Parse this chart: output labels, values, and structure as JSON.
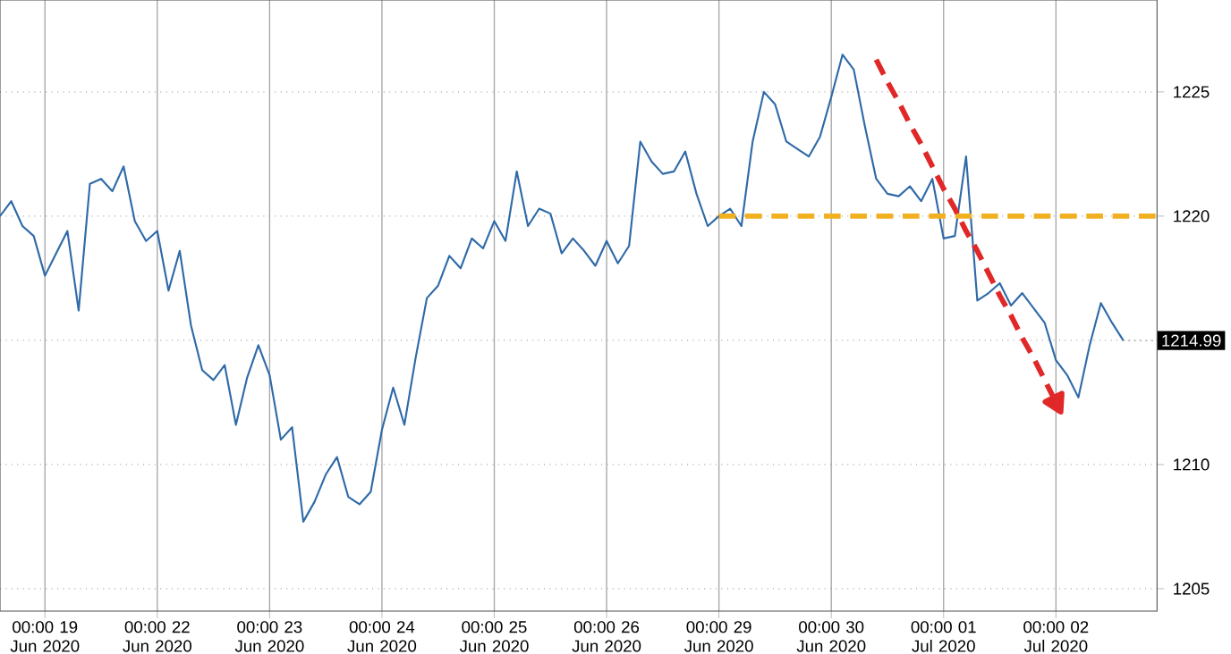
{
  "chart_data": {
    "type": "line",
    "categories": [
      null,
      null,
      null,
      null,
      "00:00 19 Jun 2020",
      null,
      null,
      null,
      null,
      null,
      null,
      null,
      null,
      null,
      "00:00 22 Jun 2020",
      null,
      null,
      null,
      null,
      null,
      null,
      null,
      null,
      null,
      "00:00 23 Jun 2020",
      null,
      null,
      null,
      null,
      null,
      null,
      null,
      null,
      null,
      "00:00 24 Jun 2020",
      null,
      null,
      null,
      null,
      null,
      null,
      null,
      null,
      null,
      "00:00 25 Jun 2020",
      null,
      null,
      null,
      null,
      null,
      null,
      null,
      null,
      null,
      "00:00 26 Jun 2020",
      null,
      null,
      null,
      null,
      null,
      null,
      null,
      null,
      null,
      "00:00 29 Jun 2020",
      null,
      null,
      null,
      null,
      null,
      null,
      null,
      null,
      null,
      "00:00 30 Jun 2020",
      null,
      null,
      null,
      null,
      null,
      null,
      null,
      null,
      null,
      "00:00 01 Jul 2020",
      null,
      null,
      null,
      null,
      null,
      null,
      null,
      null,
      null,
      "00:00 02 Jul 2020",
      null,
      null,
      null,
      null,
      null,
      null,
      null,
      null,
      null
    ],
    "series": [
      {
        "color": "#2f6aa8",
        "values": [
          1220.0,
          1220.6,
          1219.6,
          1219.2,
          1217.6,
          1218.5,
          1219.4,
          1216.2,
          1221.3,
          1221.5,
          1221.0,
          1222.0,
          1219.8,
          1219.0,
          1219.4,
          1217.0,
          1218.6,
          1215.6,
          1213.8,
          1213.4,
          1214.0,
          1211.6,
          1213.5,
          1214.8,
          1213.6,
          1211.0,
          1211.5,
          1207.7,
          1208.5,
          1209.6,
          1210.3,
          1208.7,
          1208.4,
          1208.9,
          1211.4,
          1213.1,
          1211.6,
          1214.3,
          1216.7,
          1217.2,
          1218.4,
          1217.9,
          1219.1,
          1218.7,
          1219.8,
          1219.0,
          1221.8,
          1219.6,
          1220.3,
          1220.1,
          1218.5,
          1219.1,
          1218.6,
          1218.0,
          1219.0,
          1218.1,
          1218.8,
          1223.0,
          1222.2,
          1221.7,
          1221.8,
          1222.6,
          1220.9,
          1219.6,
          1220.0,
          1220.3,
          1219.6,
          1223.0,
          1225.0,
          1224.5,
          1223.0,
          1222.7,
          1222.4,
          1223.2,
          1224.8,
          1226.5,
          1225.9,
          1223.6,
          1221.5,
          1220.9,
          1220.8,
          1221.2,
          1220.6,
          1221.5,
          1219.1,
          1219.2,
          1222.4,
          1216.6,
          1216.9,
          1217.3,
          1216.4,
          1216.9,
          1216.3,
          1215.7,
          1214.2,
          1213.6,
          1212.7,
          1214.8,
          1216.5,
          1215.7,
          1214.99,
          null,
          null,
          null
        ]
      },
      {
        "type": "line",
        "color": "#f0b020",
        "line_style": "dashed",
        "values": [
          null,
          null,
          null,
          null,
          null,
          null,
          null,
          null,
          null,
          null,
          null,
          null,
          null,
          null,
          null,
          null,
          null,
          null,
          null,
          null,
          null,
          null,
          null,
          null,
          null,
          null,
          null,
          null,
          null,
          null,
          null,
          null,
          null,
          null,
          null,
          null,
          null,
          null,
          null,
          null,
          null,
          null,
          null,
          null,
          null,
          null,
          null,
          null,
          null,
          null,
          null,
          null,
          null,
          null,
          null,
          null,
          null,
          null,
          null,
          null,
          null,
          null,
          null,
          null,
          1220,
          1220,
          1220,
          1220,
          1220,
          1220,
          1220,
          1220,
          1220,
          1220,
          1220,
          1220,
          1220,
          1220,
          1220,
          1220,
          1220,
          1220,
          1220,
          1220,
          1220,
          1220,
          1220,
          1220,
          1220,
          1220,
          1220,
          1220,
          1220,
          1220,
          1220,
          1220,
          1220,
          1220,
          1220,
          1220,
          1220,
          1220,
          1220,
          1220
        ]
      },
      {
        "type": "line",
        "color": "#e02828",
        "line_style": "dashed",
        "values": [
          null,
          null,
          null,
          null,
          null,
          null,
          null,
          null,
          null,
          null,
          null,
          null,
          null,
          null,
          null,
          null,
          null,
          null,
          null,
          null,
          null,
          null,
          null,
          null,
          null,
          null,
          null,
          null,
          null,
          null,
          null,
          null,
          null,
          null,
          null,
          null,
          null,
          null,
          null,
          null,
          null,
          null,
          null,
          null,
          null,
          null,
          null,
          null,
          null,
          null,
          null,
          null,
          null,
          null,
          null,
          null,
          null,
          null,
          null,
          null,
          null,
          null,
          null,
          null,
          null,
          null,
          null,
          null,
          null,
          null,
          null,
          null,
          null,
          null,
          null,
          null,
          null,
          null,
          1226.3,
          1225.4,
          1224.6,
          1223.7,
          1222.9,
          1222.0,
          1221.1,
          1220.3,
          1219.4,
          1218.6,
          1217.7,
          1216.8,
          1216.0,
          1215.1,
          1214.3,
          1213.4,
          1212.5,
          null,
          null,
          null,
          null,
          null,
          null,
          null,
          null,
          null
        ]
      }
    ],
    "annotations": [
      "1214.99"
    ],
    "ylim": [
      1204.1,
      1228.7
    ],
    "yticks": [
      1205,
      1210,
      {
        "value": 1215,
        "label": null
      },
      1220,
      1225
    ],
    "grid": true
  }
}
